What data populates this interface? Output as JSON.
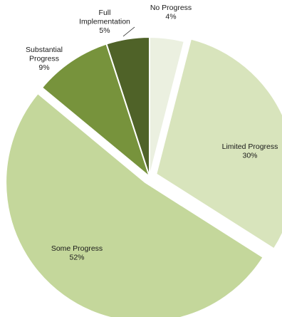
{
  "chart_data": {
    "type": "pie",
    "categories": [
      "No Progress",
      "Limited Progress",
      "Some Progress",
      "Substantial Progress",
      "Full Implementation"
    ],
    "values": [
      4,
      30,
      52,
      9,
      5
    ],
    "value_labels": [
      "4%",
      "30%",
      "52%",
      "9%",
      "5%"
    ],
    "label_lines": [
      [
        "No Progress"
      ],
      [
        "Limited Progress"
      ],
      [
        "Some Progress"
      ],
      [
        "Substantial",
        "Progress"
      ],
      [
        "Full",
        "Implementation"
      ]
    ],
    "colors": [
      "#ebf0e0",
      "#d8e4bc",
      "#c4d79b",
      "#77933c",
      "#4f6228"
    ],
    "exploded": [
      "Limited Progress",
      "Some Progress"
    ],
    "legend": "none"
  }
}
